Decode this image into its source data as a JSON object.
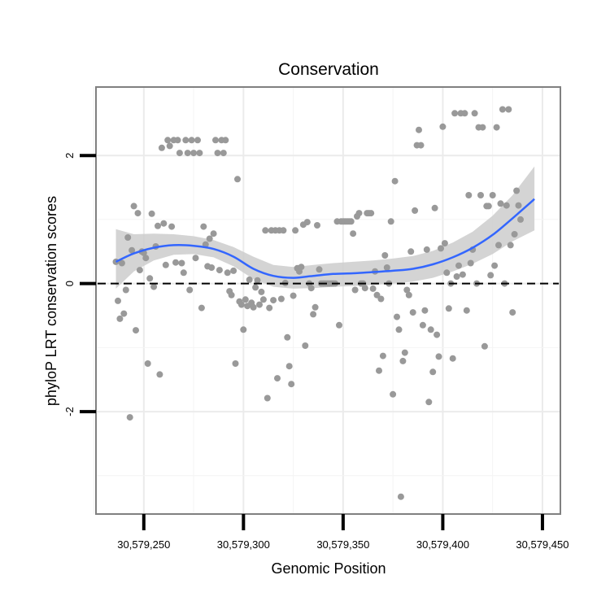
{
  "chart_data": {
    "type": "scatter",
    "title": "Conservation",
    "xlabel": "Genomic Position",
    "ylabel": "phyloP LRT conservation scores",
    "xlim": [
      30579226,
      30579459
    ],
    "ylim": [
      -3.6,
      3.07
    ],
    "x_ticks": [
      {
        "value": 30579250,
        "label": "30,579,250"
      },
      {
        "value": 30579300,
        "label": "30,579,300"
      },
      {
        "value": 30579350,
        "label": "30,579,350"
      },
      {
        "value": 30579400,
        "label": "30,579,400"
      },
      {
        "value": 30579450,
        "label": "30,579,450"
      }
    ],
    "y_ticks": [
      {
        "value": 2,
        "label": "2"
      },
      {
        "value": 0,
        "label": "0"
      },
      {
        "value": -2,
        "label": "-2"
      }
    ],
    "x_minor_grid": [
      30579225,
      30579275,
      30579325,
      30579375,
      30579425
    ],
    "y_minor_grid": [
      1,
      -1,
      -3
    ],
    "reference_line": {
      "y": 0,
      "style": "dashed"
    },
    "smooth": {
      "x": [
        30579236,
        30579245,
        30579255,
        30579265,
        30579275,
        30579285,
        30579295,
        30579305,
        30579315,
        30579325,
        30579335,
        30579345,
        30579355,
        30579365,
        30579375,
        30579385,
        30579395,
        30579405,
        30579415,
        30579425,
        30579435,
        30579446
      ],
      "y": [
        0.34,
        0.47,
        0.56,
        0.6,
        0.59,
        0.54,
        0.42,
        0.23,
        0.12,
        0.09,
        0.12,
        0.15,
        0.16,
        0.18,
        0.2,
        0.23,
        0.3,
        0.41,
        0.56,
        0.76,
        1.02,
        1.32
      ],
      "lower": [
        -0.08,
        0.19,
        0.36,
        0.45,
        0.46,
        0.41,
        0.27,
        0.07,
        -0.05,
        -0.08,
        -0.07,
        -0.05,
        -0.04,
        -0.02,
        0.0,
        0.03,
        0.09,
        0.19,
        0.31,
        0.46,
        0.66,
        0.83
      ],
      "upper": [
        0.85,
        0.77,
        0.78,
        0.77,
        0.74,
        0.68,
        0.57,
        0.42,
        0.29,
        0.26,
        0.29,
        0.32,
        0.34,
        0.36,
        0.39,
        0.43,
        0.51,
        0.64,
        0.81,
        1.06,
        1.38,
        1.83
      ]
    },
    "points": [
      [
        30579236,
        0.34
      ],
      [
        30579237,
        -0.27
      ],
      [
        30579238,
        -0.55
      ],
      [
        30579239,
        0.32
      ],
      [
        30579240,
        -0.47
      ],
      [
        30579241,
        -0.1
      ],
      [
        30579242,
        0.72
      ],
      [
        30579243,
        -2.09
      ],
      [
        30579244,
        0.52
      ],
      [
        30579245,
        1.21
      ],
      [
        30579246,
        -0.73
      ],
      [
        30579247,
        1.1
      ],
      [
        30579248,
        0.21
      ],
      [
        30579249,
        0.5
      ],
      [
        30579250,
        0.48
      ],
      [
        30579251,
        0.4
      ],
      [
        30579252,
        -1.25
      ],
      [
        30579253,
        0.08
      ],
      [
        30579254,
        1.09
      ],
      [
        30579255,
        -0.05
      ],
      [
        30579256,
        0.58
      ],
      [
        30579257,
        0.9
      ],
      [
        30579258,
        -1.42
      ],
      [
        30579259,
        2.12
      ],
      [
        30579260,
        0.94
      ],
      [
        30579261,
        0.29
      ],
      [
        30579262,
        2.24
      ],
      [
        30579263,
        2.15
      ],
      [
        30579264,
        0.89
      ],
      [
        30579265,
        2.24
      ],
      [
        30579266,
        0.33
      ],
      [
        30579267,
        2.24
      ],
      [
        30579268,
        2.04
      ],
      [
        30579269,
        0.32
      ],
      [
        30579270,
        0.17
      ],
      [
        30579271,
        2.24
      ],
      [
        30579272,
        2.04
      ],
      [
        30579273,
        -0.1
      ],
      [
        30579274,
        2.24
      ],
      [
        30579275,
        2.04
      ],
      [
        30579276,
        0.4
      ],
      [
        30579277,
        2.24
      ],
      [
        30579278,
        2.04
      ],
      [
        30579279,
        -0.38
      ],
      [
        30579280,
        0.89
      ],
      [
        30579281,
        0.61
      ],
      [
        30579282,
        0.27
      ],
      [
        30579283,
        0.7
      ],
      [
        30579284,
        0.25
      ],
      [
        30579285,
        0.78
      ],
      [
        30579286,
        2.24
      ],
      [
        30579287,
        2.04
      ],
      [
        30579288,
        0.21
      ],
      [
        30579289,
        2.24
      ],
      [
        30579290,
        2.04
      ],
      [
        30579291,
        2.24
      ],
      [
        30579292,
        0.17
      ],
      [
        30579293,
        -0.12
      ],
      [
        30579294,
        -0.18
      ],
      [
        30579295,
        0.2
      ],
      [
        30579296,
        -1.25
      ],
      [
        30579297,
        1.63
      ],
      [
        30579298,
        -0.28
      ],
      [
        30579299,
        -0.33
      ],
      [
        30579300,
        -0.72
      ],
      [
        30579301,
        -0.25
      ],
      [
        30579302,
        -0.35
      ],
      [
        30579303,
        0.06
      ],
      [
        30579304,
        -0.3
      ],
      [
        30579305,
        -0.37
      ],
      [
        30579306,
        -0.06
      ],
      [
        30579307,
        0.05
      ],
      [
        30579308,
        -0.33
      ],
      [
        30579309,
        -0.13
      ],
      [
        30579310,
        -0.25
      ],
      [
        30579311,
        0.83
      ],
      [
        30579312,
        -1.79
      ],
      [
        30579313,
        -0.38
      ],
      [
        30579314,
        0.83
      ],
      [
        30579315,
        -0.26
      ],
      [
        30579316,
        0.83
      ],
      [
        30579317,
        -1.48
      ],
      [
        30579318,
        0.83
      ],
      [
        30579319,
        -0.24
      ],
      [
        30579320,
        0.83
      ],
      [
        30579321,
        0.01
      ],
      [
        30579322,
        -0.84
      ],
      [
        30579323,
        -1.29
      ],
      [
        30579324,
        -1.57
      ],
      [
        30579325,
        -0.19
      ],
      [
        30579326,
        0.83
      ],
      [
        30579327,
        0.24
      ],
      [
        30579328,
        0.19
      ],
      [
        30579329,
        0.26
      ],
      [
        30579330,
        0.92
      ],
      [
        30579331,
        -0.97
      ],
      [
        30579332,
        0.96
      ],
      [
        30579333,
        0.0
      ],
      [
        30579334,
        -0.07
      ],
      [
        30579335,
        -0.48
      ],
      [
        30579336,
        -0.37
      ],
      [
        30579337,
        0.91
      ],
      [
        30579338,
        0.22
      ],
      [
        30579339,
        0.0
      ],
      [
        30579340,
        0.0
      ],
      [
        30579341,
        0.0
      ],
      [
        30579342,
        0.0
      ],
      [
        30579343,
        0.0
      ],
      [
        30579344,
        0.0
      ],
      [
        30579345,
        0.0
      ],
      [
        30579346,
        0.0
      ],
      [
        30579347,
        0.97
      ],
      [
        30579348,
        -0.65
      ],
      [
        30579349,
        0.97
      ],
      [
        30579350,
        0.97
      ],
      [
        30579351,
        0.97
      ],
      [
        30579352,
        0.97
      ],
      [
        30579353,
        0.97
      ],
      [
        30579354,
        0.97
      ],
      [
        30579355,
        0.78
      ],
      [
        30579356,
        -0.1
      ],
      [
        30579357,
        1.05
      ],
      [
        30579358,
        1.1
      ],
      [
        30579359,
        0.0
      ],
      [
        30579360,
        0.0
      ],
      [
        30579361,
        -0.07
      ],
      [
        30579362,
        1.1
      ],
      [
        30579363,
        1.1
      ],
      [
        30579364,
        1.1
      ],
      [
        30579365,
        -0.08
      ],
      [
        30579366,
        0.19
      ],
      [
        30579367,
        -0.18
      ],
      [
        30579368,
        -1.36
      ],
      [
        30579369,
        -0.24
      ],
      [
        30579370,
        -1.13
      ],
      [
        30579371,
        0.44
      ],
      [
        30579372,
        0.25
      ],
      [
        30579373,
        0.0
      ],
      [
        30579374,
        0.97
      ],
      [
        30579375,
        -1.73
      ],
      [
        30579376,
        1.6
      ],
      [
        30579377,
        -0.52
      ],
      [
        30579378,
        -0.72
      ],
      [
        30579379,
        -3.33
      ],
      [
        30579380,
        -1.21
      ],
      [
        30579381,
        -1.08
      ],
      [
        30579382,
        -0.1
      ],
      [
        30579383,
        -0.18
      ],
      [
        30579384,
        0.5
      ],
      [
        30579385,
        -0.45
      ],
      [
        30579386,
        1.14
      ],
      [
        30579387,
        2.16
      ],
      [
        30579388,
        2.4
      ],
      [
        30579389,
        2.16
      ],
      [
        30579390,
        -0.65
      ],
      [
        30579391,
        -0.42
      ],
      [
        30579392,
        0.53
      ],
      [
        30579393,
        -1.85
      ],
      [
        30579394,
        -0.72
      ],
      [
        30579395,
        -1.38
      ],
      [
        30579396,
        1.18
      ],
      [
        30579397,
        -0.8
      ],
      [
        30579398,
        -1.14
      ],
      [
        30579399,
        0.55
      ],
      [
        30579400,
        2.45
      ],
      [
        30579401,
        0.63
      ],
      [
        30579402,
        0.17
      ],
      [
        30579403,
        -0.39
      ],
      [
        30579404,
        0.0
      ],
      [
        30579405,
        -1.17
      ],
      [
        30579406,
        2.66
      ],
      [
        30579407,
        0.11
      ],
      [
        30579408,
        0.28
      ],
      [
        30579409,
        2.66
      ],
      [
        30579410,
        0.14
      ],
      [
        30579411,
        2.66
      ],
      [
        30579412,
        -0.42
      ],
      [
        30579413,
        1.38
      ],
      [
        30579414,
        0.32
      ],
      [
        30579415,
        0.53
      ],
      [
        30579416,
        2.66
      ],
      [
        30579417,
        0.0
      ],
      [
        30579418,
        2.44
      ],
      [
        30579419,
        1.38
      ],
      [
        30579420,
        2.44
      ],
      [
        30579421,
        -0.98
      ],
      [
        30579422,
        1.21
      ],
      [
        30579423,
        1.21
      ],
      [
        30579424,
        0.13
      ],
      [
        30579425,
        1.38
      ],
      [
        30579426,
        0.28
      ],
      [
        30579427,
        2.44
      ],
      [
        30579428,
        0.6
      ],
      [
        30579429,
        1.25
      ],
      [
        30579430,
        2.72
      ],
      [
        30579431,
        0.0
      ],
      [
        30579432,
        1.22
      ],
      [
        30579433,
        2.72
      ],
      [
        30579434,
        0.6
      ],
      [
        30579435,
        -0.45
      ],
      [
        30579436,
        0.77
      ],
      [
        30579437,
        1.45
      ],
      [
        30579438,
        1.22
      ],
      [
        30579439,
        1.0
      ]
    ]
  }
}
